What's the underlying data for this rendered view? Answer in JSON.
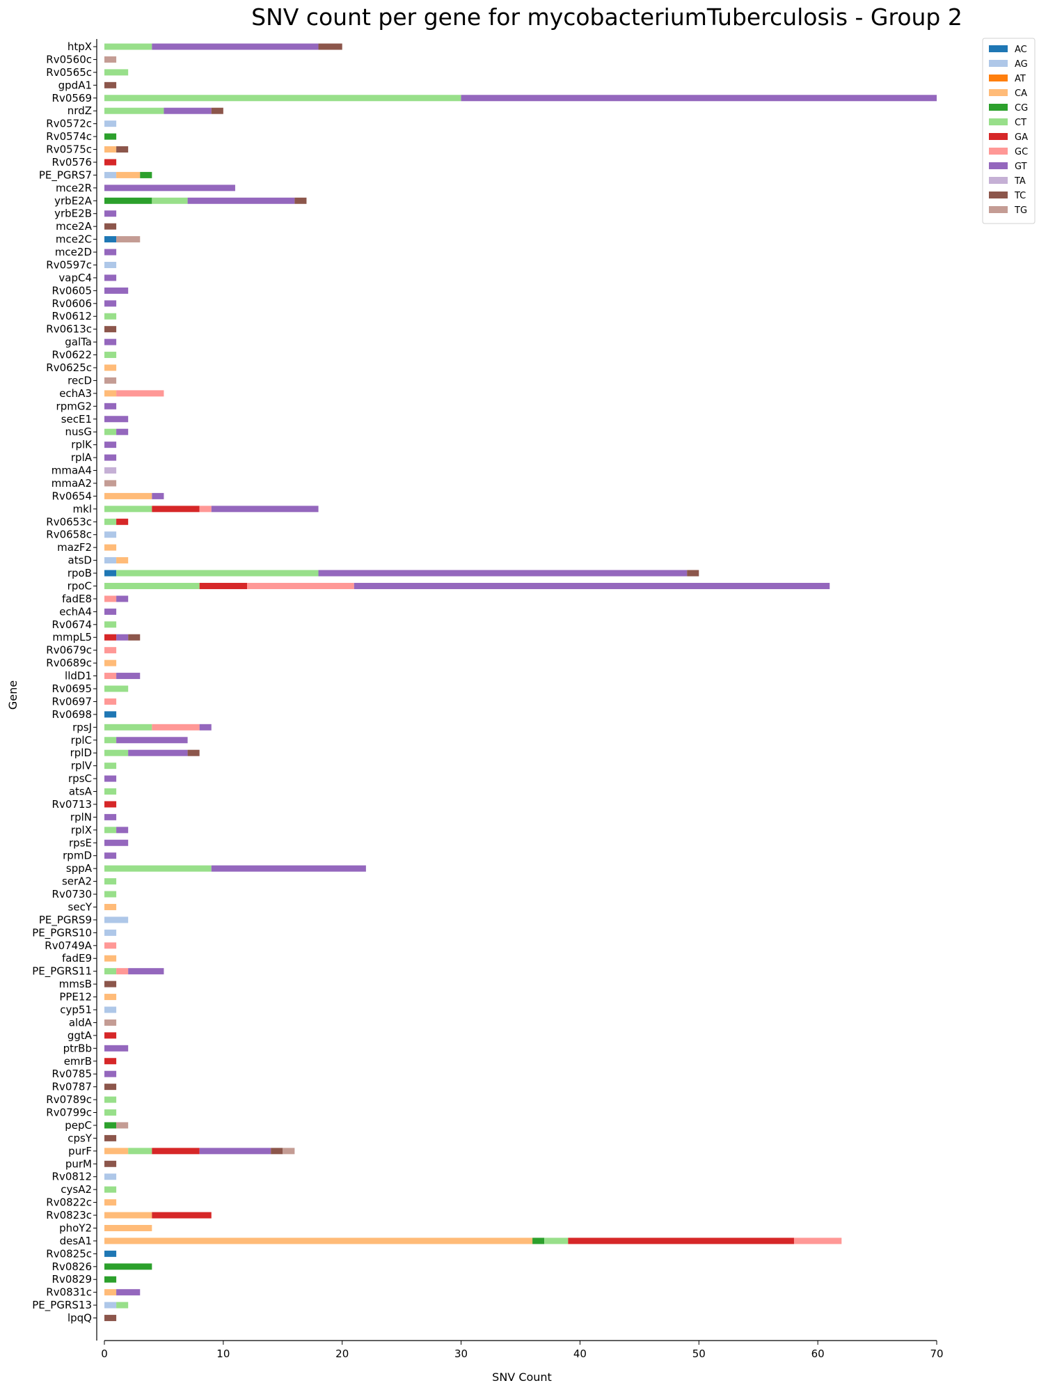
{
  "chart_data": {
    "type": "bar",
    "orientation": "horizontal",
    "stacked": true,
    "title": "SNV count per gene for mycobacteriumTuberculosis - Group 2",
    "xlabel": "SNV Count",
    "ylabel": "Gene",
    "xlim": [
      0,
      70
    ],
    "xticks": [
      0,
      10,
      20,
      30,
      40,
      50,
      60,
      70
    ],
    "grid": false,
    "legend_position": "top-right-outside",
    "legend": [
      {
        "name": "AC",
        "color": "#1f77b4"
      },
      {
        "name": "AG",
        "color": "#aec7e8"
      },
      {
        "name": "AT",
        "color": "#ff7f0e"
      },
      {
        "name": "CA",
        "color": "#ffbb78"
      },
      {
        "name": "CG",
        "color": "#2ca02c"
      },
      {
        "name": "CT",
        "color": "#98df8a"
      },
      {
        "name": "GA",
        "color": "#d62728"
      },
      {
        "name": "GC",
        "color": "#ff9896"
      },
      {
        "name": "GT",
        "color": "#9467bd"
      },
      {
        "name": "TA",
        "color": "#c5b0d5"
      },
      {
        "name": "TC",
        "color": "#8c564b"
      },
      {
        "name": "TG",
        "color": "#c49c94"
      }
    ],
    "categories": [
      "htpX",
      "Rv0560c",
      "Rv0565c",
      "gpdA1",
      "Rv0569",
      "nrdZ",
      "Rv0572c",
      "Rv0574c",
      "Rv0575c",
      "Rv0576",
      "PE_PGRS7",
      "mce2R",
      "yrbE2A",
      "yrbE2B",
      "mce2A",
      "mce2C",
      "mce2D",
      "Rv0597c",
      "vapC4",
      "Rv0605",
      "Rv0606",
      "Rv0612",
      "Rv0613c",
      "galTa",
      "Rv0622",
      "Rv0625c",
      "recD",
      "echA3",
      "rpmG2",
      "secE1",
      "nusG",
      "rplK",
      "rplA",
      "mmaA4",
      "mmaA2",
      "Rv0654",
      "mkl",
      "Rv0653c",
      "Rv0658c",
      "mazF2",
      "atsD",
      "rpoB",
      "rpoC",
      "fadE8",
      "echA4",
      "Rv0674",
      "mmpL5",
      "Rv0679c",
      "Rv0689c",
      "lldD1",
      "Rv0695",
      "Rv0697",
      "Rv0698",
      "rpsJ",
      "rplC",
      "rplD",
      "rplV",
      "rpsC",
      "atsA",
      "Rv0713",
      "rplN",
      "rplX",
      "rpsE",
      "rpmD",
      "sppA",
      "serA2",
      "Rv0730",
      "secY",
      "PE_PGRS9",
      "PE_PGRS10",
      "Rv0749A",
      "fadE9",
      "PE_PGRS11",
      "mmsB",
      "PPE12",
      "cyp51",
      "aldA",
      "ggtA",
      "ptrBb",
      "emrB",
      "Rv0785",
      "Rv0787",
      "Rv0789c",
      "Rv0799c",
      "pepC",
      "cpsY",
      "purF",
      "purM",
      "Rv0812",
      "cysA2",
      "Rv0822c",
      "Rv0823c",
      "phoY2",
      "desA1",
      "Rv0825c",
      "Rv0826",
      "Rv0829",
      "Rv0831c",
      "PE_PGRS13",
      "lpqQ"
    ],
    "segments": [
      [
        [
          "CT",
          4
        ],
        [
          "GT",
          14
        ],
        [
          "TC",
          2
        ]
      ],
      [
        [
          "TG",
          1
        ]
      ],
      [
        [
          "CT",
          2
        ]
      ],
      [
        [
          "TC",
          1
        ]
      ],
      [
        [
          "CT",
          30
        ],
        [
          "GT",
          40
        ]
      ],
      [
        [
          "CT",
          5
        ],
        [
          "GT",
          4
        ],
        [
          "TC",
          1
        ]
      ],
      [
        [
          "AG",
          1
        ]
      ],
      [
        [
          "CG",
          1
        ]
      ],
      [
        [
          "CA",
          1
        ],
        [
          "TC",
          1
        ]
      ],
      [
        [
          "GA",
          1
        ]
      ],
      [
        [
          "AG",
          1
        ],
        [
          "CA",
          2
        ],
        [
          "CG",
          1
        ]
      ],
      [
        [
          "GT",
          11
        ]
      ],
      [
        [
          "CG",
          4
        ],
        [
          "CT",
          3
        ],
        [
          "GT",
          9
        ],
        [
          "TC",
          1
        ]
      ],
      [
        [
          "GT",
          1
        ]
      ],
      [
        [
          "TC",
          1
        ]
      ],
      [
        [
          "AC",
          1
        ],
        [
          "TG",
          2
        ]
      ],
      [
        [
          "GT",
          1
        ]
      ],
      [
        [
          "AG",
          1
        ]
      ],
      [
        [
          "GT",
          1
        ]
      ],
      [
        [
          "GT",
          2
        ]
      ],
      [
        [
          "GT",
          1
        ]
      ],
      [
        [
          "CT",
          1
        ]
      ],
      [
        [
          "TC",
          1
        ]
      ],
      [
        [
          "GT",
          1
        ]
      ],
      [
        [
          "CT",
          1
        ]
      ],
      [
        [
          "CA",
          1
        ]
      ],
      [
        [
          "TG",
          1
        ]
      ],
      [
        [
          "CA",
          1
        ],
        [
          "GC",
          4
        ]
      ],
      [
        [
          "GT",
          1
        ]
      ],
      [
        [
          "GT",
          2
        ]
      ],
      [
        [
          "CT",
          1
        ],
        [
          "GT",
          1
        ]
      ],
      [
        [
          "GT",
          1
        ]
      ],
      [
        [
          "GT",
          1
        ]
      ],
      [
        [
          "TA",
          1
        ]
      ],
      [
        [
          "TG",
          1
        ]
      ],
      [
        [
          "CA",
          4
        ],
        [
          "GT",
          1
        ]
      ],
      [
        [
          "CT",
          4
        ],
        [
          "GA",
          4
        ],
        [
          "GC",
          1
        ],
        [
          "GT",
          9
        ]
      ],
      [
        [
          "CT",
          1
        ],
        [
          "GA",
          1
        ]
      ],
      [
        [
          "AG",
          1
        ]
      ],
      [
        [
          "CA",
          1
        ]
      ],
      [
        [
          "AG",
          1
        ],
        [
          "CA",
          1
        ]
      ],
      [
        [
          "AC",
          1
        ],
        [
          "CT",
          17
        ],
        [
          "GT",
          31
        ],
        [
          "TC",
          1
        ]
      ],
      [
        [
          "CT",
          8
        ],
        [
          "GA",
          4
        ],
        [
          "GC",
          9
        ],
        [
          "GT",
          40
        ]
      ],
      [
        [
          "GC",
          1
        ],
        [
          "GT",
          1
        ]
      ],
      [
        [
          "GT",
          1
        ]
      ],
      [
        [
          "CT",
          1
        ]
      ],
      [
        [
          "GA",
          1
        ],
        [
          "GT",
          1
        ],
        [
          "TC",
          1
        ]
      ],
      [
        [
          "GC",
          1
        ]
      ],
      [
        [
          "CA",
          1
        ]
      ],
      [
        [
          "GC",
          1
        ],
        [
          "GT",
          2
        ]
      ],
      [
        [
          "CT",
          2
        ]
      ],
      [
        [
          "GC",
          1
        ]
      ],
      [
        [
          "AC",
          1
        ]
      ],
      [
        [
          "CT",
          4
        ],
        [
          "GC",
          4
        ],
        [
          "GT",
          1
        ]
      ],
      [
        [
          "CT",
          1
        ],
        [
          "GT",
          6
        ]
      ],
      [
        [
          "CT",
          2
        ],
        [
          "GT",
          5
        ],
        [
          "TC",
          1
        ]
      ],
      [
        [
          "CT",
          1
        ]
      ],
      [
        [
          "GT",
          1
        ]
      ],
      [
        [
          "CT",
          1
        ]
      ],
      [
        [
          "GA",
          1
        ]
      ],
      [
        [
          "GT",
          1
        ]
      ],
      [
        [
          "CT",
          1
        ],
        [
          "GT",
          1
        ]
      ],
      [
        [
          "GT",
          2
        ]
      ],
      [
        [
          "GT",
          1
        ]
      ],
      [
        [
          "CT",
          9
        ],
        [
          "GT",
          13
        ]
      ],
      [
        [
          "CT",
          1
        ]
      ],
      [
        [
          "CT",
          1
        ]
      ],
      [
        [
          "CA",
          1
        ]
      ],
      [
        [
          "AG",
          2
        ]
      ],
      [
        [
          "AG",
          1
        ]
      ],
      [
        [
          "GC",
          1
        ]
      ],
      [
        [
          "CA",
          1
        ]
      ],
      [
        [
          "CT",
          1
        ],
        [
          "GC",
          1
        ],
        [
          "GT",
          3
        ]
      ],
      [
        [
          "TC",
          1
        ]
      ],
      [
        [
          "CA",
          1
        ]
      ],
      [
        [
          "AG",
          1
        ]
      ],
      [
        [
          "TG",
          1
        ]
      ],
      [
        [
          "GA",
          1
        ]
      ],
      [
        [
          "GT",
          2
        ]
      ],
      [
        [
          "GA",
          1
        ]
      ],
      [
        [
          "GT",
          1
        ]
      ],
      [
        [
          "TC",
          1
        ]
      ],
      [
        [
          "CT",
          1
        ]
      ],
      [
        [
          "CT",
          1
        ]
      ],
      [
        [
          "CG",
          1
        ],
        [
          "TG",
          1
        ]
      ],
      [
        [
          "TC",
          1
        ]
      ],
      [
        [
          "CA",
          2
        ],
        [
          "CT",
          2
        ],
        [
          "GA",
          4
        ],
        [
          "GT",
          6
        ],
        [
          "TC",
          1
        ],
        [
          "TG",
          1
        ]
      ],
      [
        [
          "TC",
          1
        ]
      ],
      [
        [
          "AG",
          1
        ]
      ],
      [
        [
          "CT",
          1
        ]
      ],
      [
        [
          "CA",
          1
        ]
      ],
      [
        [
          "CA",
          4
        ],
        [
          "GA",
          5
        ]
      ],
      [
        [
          "CA",
          4
        ]
      ],
      [
        [
          "CA",
          36
        ],
        [
          "CG",
          1
        ],
        [
          "CT",
          2
        ],
        [
          "GA",
          19
        ],
        [
          "GC",
          4
        ]
      ],
      [
        [
          "AC",
          1
        ]
      ],
      [
        [
          "CG",
          4
        ]
      ],
      [
        [
          "CG",
          1
        ]
      ],
      [
        [
          "CA",
          1
        ],
        [
          "GT",
          2
        ]
      ],
      [
        [
          "AG",
          1
        ],
        [
          "CT",
          1
        ]
      ],
      [
        [
          "TC",
          1
        ]
      ]
    ]
  }
}
